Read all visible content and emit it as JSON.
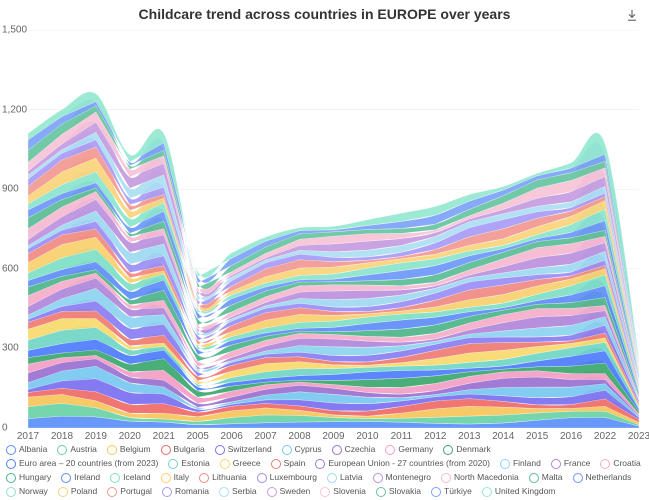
{
  "chart": {
    "type": "stacked-area",
    "title": "Childcare trend across countries in EUROPE over years",
    "title_fontsize": 14,
    "background_color": "#ffffff",
    "axis_font_color": "#666666",
    "axis_fontsize": 10,
    "legend_fontsize": 8.5,
    "grid_color": "#e6e6e6",
    "ylim": [
      0,
      1500
    ],
    "yticks": [
      0,
      300,
      600,
      900,
      1200,
      1500
    ],
    "ytick_labels": [
      "0",
      "300",
      "600",
      "900",
      "1,200",
      "1,500"
    ],
    "x_labels": [
      "2017",
      "2018",
      "2019",
      "2020",
      "2021",
      "2005",
      "2006",
      "2007",
      "2008",
      "2009",
      "2010",
      "2011",
      "2012",
      "2013",
      "2014",
      "2015",
      "2016",
      "2022",
      "2023"
    ],
    "totals": [
      1110,
      1200,
      1260,
      1030,
      1110,
      590,
      660,
      720,
      755,
      760,
      785,
      810,
      835,
      880,
      910,
      960,
      1000,
      1070,
      1070
    ],
    "series": [
      {
        "name": "Albania",
        "color": "#5b8ff9"
      },
      {
        "name": "Austria",
        "color": "#69d2a7"
      },
      {
        "name": "Belgium",
        "color": "#f6c65a"
      },
      {
        "name": "Bulgaria",
        "color": "#ee6a66"
      },
      {
        "name": "Switzerland",
        "color": "#7a6ff0"
      },
      {
        "name": "Cyprus",
        "color": "#76c8ef"
      },
      {
        "name": "Czechia",
        "color": "#9a70d1"
      },
      {
        "name": "Germany",
        "color": "#f29ec4"
      },
      {
        "name": "Denmark",
        "color": "#3aa76d"
      },
      {
        "name": "Euro area – 20 countries (from 2023)",
        "color": "#4d7cfe"
      },
      {
        "name": "Estonia",
        "color": "#6fd6c4"
      },
      {
        "name": "Greece",
        "color": "#f6d96b"
      },
      {
        "name": "Spain",
        "color": "#ef7b72"
      },
      {
        "name": "European Union - 27 countries (from 2020)",
        "color": "#8a7ef2"
      },
      {
        "name": "Finland",
        "color": "#8cd4ef"
      },
      {
        "name": "France",
        "color": "#b085da"
      },
      {
        "name": "Croatia",
        "color": "#f4acc9"
      },
      {
        "name": "Hungary",
        "color": "#4cb58a"
      },
      {
        "name": "Ireland",
        "color": "#5e8cf7"
      },
      {
        "name": "Iceland",
        "color": "#7de0c4"
      },
      {
        "name": "Italy",
        "color": "#f7cf6d"
      },
      {
        "name": "Lithuania",
        "color": "#f08a82"
      },
      {
        "name": "Luxembourg",
        "color": "#9a8ef5"
      },
      {
        "name": "Latvia",
        "color": "#9ed9f0"
      },
      {
        "name": "Montenegro",
        "color": "#bc90dd"
      },
      {
        "name": "North Macedonia",
        "color": "#f5b8d1"
      },
      {
        "name": "Malta",
        "color": "#59bd95"
      },
      {
        "name": "Netherlands",
        "color": "#6d97f8"
      },
      {
        "name": "Norway",
        "color": "#8ae4cb"
      },
      {
        "name": "Poland",
        "color": "#f8d47b"
      },
      {
        "name": "Portugal",
        "color": "#f19890"
      },
      {
        "name": "Romania",
        "color": "#a89bf6"
      },
      {
        "name": "Serbia",
        "color": "#abdef2"
      },
      {
        "name": "Sweden",
        "color": "#c59ce0"
      },
      {
        "name": "Slovenia",
        "color": "#f6c2d7"
      },
      {
        "name": "Slovakia",
        "color": "#66c49f"
      },
      {
        "name": "Türkiye",
        "color": "#7ca2f9"
      },
      {
        "name": "United Kingdom",
        "color": "#95e8d0"
      }
    ]
  },
  "toolbox": {
    "download_label": "Save as image"
  }
}
